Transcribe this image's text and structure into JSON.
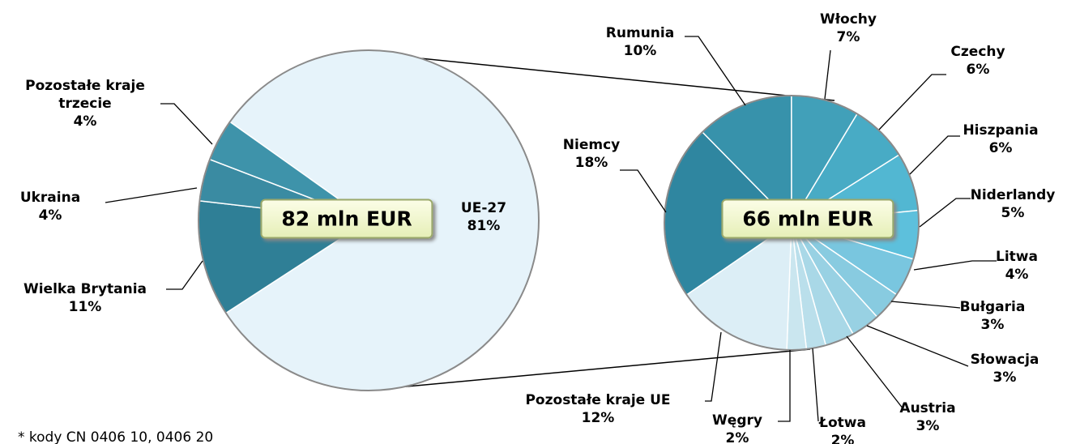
{
  "chart_data": [
    {
      "type": "pie",
      "center_label": "82 mln EUR",
      "categories": [
        "UE-27",
        "Wielka Brytania",
        "Ukraina",
        "Pozostałe kraje trzecie"
      ],
      "values": [
        81,
        11,
        4,
        4
      ],
      "value_labels": [
        "81%",
        "11%",
        "4%",
        "4%"
      ],
      "colors": [
        "#e6f3fa",
        "#2f7f96",
        "#3a8ba2",
        "#3e93aa"
      ]
    },
    {
      "type": "pie",
      "center_label": "66 mln EUR",
      "categories": [
        "Niemcy",
        "Rumunia",
        "Włochy",
        "Czechy",
        "Hiszpania",
        "Niderlandy",
        "Litwa",
        "Bułgaria",
        "Słowacja",
        "Austria",
        "Łotwa",
        "Węgry",
        "Pozostałe kraje UE"
      ],
      "values": [
        18,
        10,
        7,
        6,
        6,
        5,
        4,
        3,
        3,
        3,
        2,
        2,
        12
      ],
      "value_labels": [
        "18%",
        "10%",
        "7%",
        "6%",
        "6%",
        "5%",
        "4%",
        "3%",
        "3%",
        "3%",
        "2%",
        "2%",
        "12%"
      ],
      "colors": [
        "#2f86a0",
        "#3792ab",
        "#41a0b9",
        "#48abc5",
        "#52b7d2",
        "#5dc0dc",
        "#79c6df",
        "#88cbe0",
        "#98d1e3",
        "#a9d8e7",
        "#badfeb",
        "#cae6ef",
        "#dceef6"
      ]
    }
  ],
  "footnote": "* kody CN 0406 10, 0406 20"
}
